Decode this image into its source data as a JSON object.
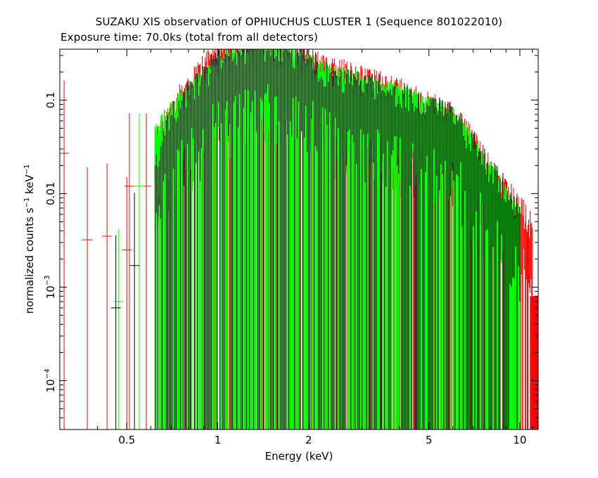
{
  "chart_data": {
    "type": "scatter",
    "title": "SUZAKU XIS observation of OPHIUCHUS CLUSTER 1 (Sequence 801022010)",
    "subtitle": "Exposure time: 70.0ks (total from all detectors)",
    "xlabel": "Energy (keV)",
    "ylabel_parts": {
      "base": "normalized counts s",
      "exp1": "−1",
      "mid": " keV",
      "exp2": "−1"
    },
    "x_scale": "log",
    "y_scale": "log",
    "xlim": [
      0.3,
      11.5
    ],
    "ylim": [
      3e-05,
      0.35
    ],
    "x_ticks": [
      {
        "value": 0.5,
        "label": "0.5"
      },
      {
        "value": 1,
        "label": "1"
      },
      {
        "value": 2,
        "label": "2"
      },
      {
        "value": 5,
        "label": "5"
      },
      {
        "value": 10,
        "label": "10"
      }
    ],
    "y_ticks": [
      {
        "value": 0.0001,
        "mantissa": "10",
        "exponent": "−4"
      },
      {
        "value": 0.001,
        "mantissa": "10",
        "exponent": "−3"
      },
      {
        "value": 0.01,
        "label": "0.01"
      },
      {
        "value": 0.1,
        "label": "0.1"
      }
    ],
    "series": [
      {
        "color": "#ff0000",
        "points": [
          {
            "x": 0.31,
            "y": 0.027
          },
          {
            "x": 0.37,
            "y": 0.0032
          },
          {
            "x": 0.43,
            "y": 0.0035
          },
          {
            "x": 0.5,
            "y": 0.0025
          },
          {
            "x": 0.51,
            "y": 0.012
          },
          {
            "x": 0.58,
            "y": 0.012
          },
          {
            "x": 0.7,
            "y": 0.045
          },
          {
            "x": 1.0,
            "y": 0.2
          },
          {
            "x": 1.3,
            "y": 0.24
          },
          {
            "x": 1.7,
            "y": 0.22
          },
          {
            "x": 2.3,
            "y": 0.12
          },
          {
            "x": 3.0,
            "y": 0.1
          },
          {
            "x": 4.0,
            "y": 0.07
          },
          {
            "x": 5.0,
            "y": 0.05
          },
          {
            "x": 6.0,
            "y": 0.04
          },
          {
            "x": 7.0,
            "y": 0.02
          },
          {
            "x": 8.0,
            "y": 0.01
          },
          {
            "x": 9.0,
            "y": 0.006
          },
          {
            "x": 10.0,
            "y": 0.004
          },
          {
            "x": 11.0,
            "y": 0.0025
          }
        ]
      },
      {
        "color": "#00ff00",
        "points": [
          {
            "x": 0.47,
            "y": 0.0007
          },
          {
            "x": 0.55,
            "y": 0.012
          },
          {
            "x": 0.7,
            "y": 0.04
          },
          {
            "x": 1.0,
            "y": 0.13
          },
          {
            "x": 1.3,
            "y": 0.18
          },
          {
            "x": 1.7,
            "y": 0.17
          },
          {
            "x": 2.3,
            "y": 0.1
          },
          {
            "x": 3.0,
            "y": 0.08
          },
          {
            "x": 4.0,
            "y": 0.06
          },
          {
            "x": 5.0,
            "y": 0.045
          },
          {
            "x": 6.0,
            "y": 0.035
          },
          {
            "x": 7.0,
            "y": 0.018
          },
          {
            "x": 8.0,
            "y": 0.009
          },
          {
            "x": 9.0,
            "y": 0.005
          },
          {
            "x": 10.0,
            "y": 0.003
          }
        ]
      },
      {
        "color": "#000000",
        "points": [
          {
            "x": 0.46,
            "y": 0.0006
          },
          {
            "x": 0.53,
            "y": 0.0017
          },
          {
            "x": 0.7,
            "y": 0.04
          },
          {
            "x": 1.0,
            "y": 0.15
          },
          {
            "x": 1.3,
            "y": 0.2
          },
          {
            "x": 1.7,
            "y": 0.2
          },
          {
            "x": 2.3,
            "y": 0.11
          },
          {
            "x": 3.0,
            "y": 0.09
          },
          {
            "x": 4.0,
            "y": 0.065
          },
          {
            "x": 5.0,
            "y": 0.05
          },
          {
            "x": 6.0,
            "y": 0.038
          },
          {
            "x": 7.0,
            "y": 0.02
          },
          {
            "x": 8.0,
            "y": 0.01
          },
          {
            "x": 9.0,
            "y": 0.006
          },
          {
            "x": 10.0,
            "y": 0.0035
          }
        ]
      }
    ]
  }
}
